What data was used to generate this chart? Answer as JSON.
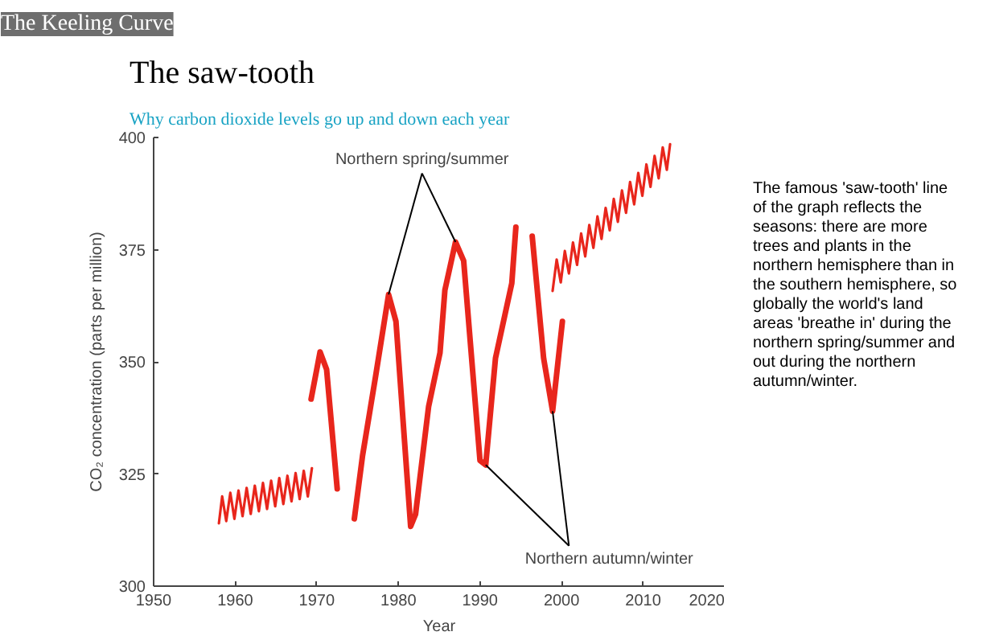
{
  "chart_data": {
    "type": "line",
    "title": "The saw-tooth",
    "subtitle": "Why carbon dioxide levels go up and down each year",
    "xlabel": "Year",
    "ylabel": "CO₂ concentration (parts per million)",
    "xlim": [
      1950,
      2020
    ],
    "xticks": [
      1950,
      1960,
      1970,
      1980,
      1990,
      2000,
      2010,
      2020
    ],
    "ylim": [
      300,
      400
    ],
    "yticks": [
      300,
      325,
      350,
      375,
      400
    ],
    "grid": false,
    "series": [
      {
        "color": "#e8261c",
        "x": [
          1958.0,
          1958.4,
          1958.9,
          1959.4,
          1959.9,
          1960.4,
          1960.9,
          1961.4,
          1961.9,
          1962.4,
          1962.9,
          1963.4,
          1963.9,
          1964.4,
          1964.9,
          1965.4,
          1965.9,
          1966.4,
          1966.9,
          1967.4,
          1967.9,
          1968.4,
          1968.9,
          1969.4,
          1985.0,
          1998.9,
          1999.4,
          1999.9,
          2000.4,
          2000.9,
          2001.4,
          2001.9,
          2002.4,
          2002.9,
          2003.4,
          2003.9,
          2004.4,
          2004.9,
          2005.4,
          2005.9,
          2006.4,
          2006.9,
          2007.4,
          2007.9,
          2008.4,
          2008.9,
          2009.4,
          2009.9,
          2010.4,
          2010.9,
          2011.4,
          2011.9,
          2012.4,
          2012.9,
          2013.3
        ],
        "values": [
          314,
          320,
          314.5,
          320.8,
          315,
          321.3,
          315.6,
          321.9,
          316.1,
          322.4,
          316.7,
          323,
          317.2,
          323.5,
          317.8,
          324.1,
          318.3,
          324.6,
          318.9,
          325.2,
          319.4,
          325.7,
          320,
          326.3,
          null,
          365.8,
          372.8,
          367.7,
          374.7,
          369.7,
          376.6,
          371.6,
          378.6,
          373.5,
          380.5,
          375.4,
          382.4,
          377.4,
          384.3,
          379.3,
          386.3,
          381.2,
          388.2,
          383.2,
          390.1,
          385.1,
          392.1,
          387,
          394,
          389,
          395.9,
          390.9,
          397.8,
          392.8,
          398.5
        ]
      },
      {
        "color": "#e8261c",
        "x": [
          1969.3,
          1970.4,
          1971.2,
          1972.5,
          1973.5,
          1974.6,
          1975.6,
          1977.2,
          1978.8,
          1979.7,
          1981.5,
          1982.1,
          1983.7,
          1985.1,
          1985.7,
          1987.0,
          1988.0,
          1990.0,
          1990.7,
          1991.9,
          1993.9,
          1994.4,
          1995.4,
          1996.4,
          1997.8,
          1998.9,
          2000.1
        ],
        "values": [
          341.7,
          352.2,
          348.3,
          321.7,
          null,
          315,
          329,
          346.7,
          365,
          359,
          313.3,
          316,
          340,
          352,
          366,
          376.7,
          372.5,
          328,
          327,
          350.8,
          367.5,
          380,
          null,
          378,
          350.8,
          339,
          359
        ]
      }
    ],
    "annotations": [
      "The Keeling Curve",
      {
        "text": "Northern spring/summer",
        "x": 1987.0,
        "y": 376.7
      },
      {
        "text": "Northern autumn/winter",
        "x": 1998.9,
        "y": 339
      },
      "The famous 'saw-tooth' line of the graph reflects the seasons: there are more trees and plants in the northern hemisphere than in the southern hemisphere, so globally the world's land areas 'breathe in' during the northern spring/summer and out during the northern autumn/winter."
    ]
  }
}
